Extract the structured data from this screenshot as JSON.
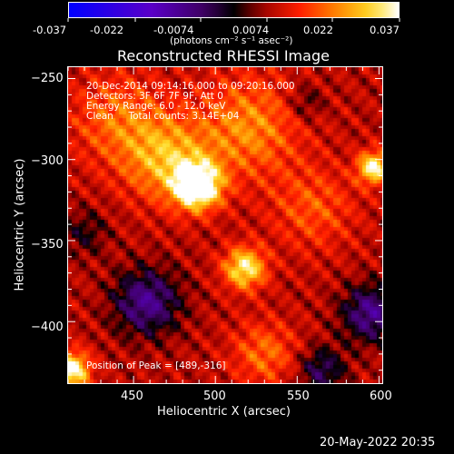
{
  "colorbar": {
    "ticks": [
      "-0.037",
      "-0.022",
      "-0.0074",
      "0.0074",
      "0.022",
      "0.037"
    ],
    "tick_values": [
      -0.037,
      -0.022,
      -0.0074,
      0.0074,
      0.022,
      0.037
    ],
    "unit_label": "(photons cm⁻² s⁻¹ asec⁻²)",
    "range": [
      -0.037,
      0.037
    ],
    "colors": [
      "#0000ff",
      "#5a00d8",
      "#8020b0",
      "#000000",
      "#ff0000",
      "#ff8000",
      "#ffd000",
      "#ffffff"
    ]
  },
  "title": "Reconstructed RHESSI Image",
  "info": {
    "time": "20-Dec-2014 09:14:16.000 to 09:20:16.000",
    "detectors": "Detectors: 3F 6F 7F 9F, Att 0",
    "energy": "Energy Range: 6.0 - 12.0 keV",
    "clean": "Clean     Total counts: 3.14E+04",
    "peak": "Position of Peak = [489,-316]"
  },
  "footer_date": "20-May-2022 20:35",
  "chart_data": {
    "type": "heatmap",
    "title": "Reconstructed RHESSI Image",
    "xlabel": "Heliocentric X (arcsec)",
    "ylabel": "Heliocentric Y (arcsec)",
    "xlim": [
      410,
      602
    ],
    "ylim": [
      -438,
      -243
    ],
    "x_ticks": [
      450,
      500,
      550,
      600
    ],
    "y_ticks": [
      -250,
      -300,
      -350,
      -400
    ],
    "x_tick_labels": [
      "450",
      "500",
      "550",
      "600"
    ],
    "y_tick_labels": [
      "−250",
      "−300",
      "−350",
      "−400"
    ],
    "peak_position": [
      489,
      -316
    ],
    "grid": false,
    "colorscale_range": [
      -0.037,
      0.037
    ],
    "blobs": [
      {
        "x": 489,
        "y": -316,
        "amp": 0.037,
        "sigma": 10
      },
      {
        "x": 470,
        "y": -300,
        "amp": 0.018,
        "sigma": 18
      },
      {
        "x": 520,
        "y": -280,
        "amp": 0.015,
        "sigma": 22
      },
      {
        "x": 518,
        "y": -367,
        "amp": 0.026,
        "sigma": 9
      },
      {
        "x": 597,
        "y": -305,
        "amp": 0.028,
        "sigma": 7
      },
      {
        "x": 440,
        "y": -275,
        "amp": 0.012,
        "sigma": 20
      },
      {
        "x": 560,
        "y": -330,
        "amp": 0.01,
        "sigma": 18
      },
      {
        "x": 530,
        "y": -420,
        "amp": 0.012,
        "sigma": 14
      },
      {
        "x": 412,
        "y": -430,
        "amp": 0.03,
        "sigma": 8
      },
      {
        "x": 458,
        "y": -388,
        "amp": -0.02,
        "sigma": 14
      },
      {
        "x": 565,
        "y": -430,
        "amp": -0.014,
        "sigma": 10
      },
      {
        "x": 595,
        "y": -395,
        "amp": -0.02,
        "sigma": 12
      },
      {
        "x": 555,
        "y": -265,
        "amp": -0.008,
        "sigma": 8
      },
      {
        "x": 420,
        "y": -345,
        "amp": -0.008,
        "sigma": 10
      }
    ]
  }
}
